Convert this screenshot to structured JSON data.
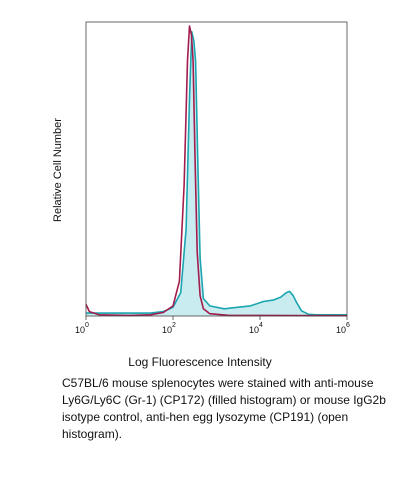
{
  "chart_data": {
    "type": "area",
    "title": "",
    "xlabel": "Log Fluorescence Intensity",
    "ylabel": "Relative Cell Number",
    "xscale": "log",
    "xlim": [
      1,
      1000000
    ],
    "ylim": [
      0,
      1
    ],
    "grid": false,
    "legend": "none",
    "ticks": [
      {
        "base": "10",
        "exp": "0",
        "value": 1
      },
      {
        "base": "10",
        "exp": "2",
        "value": 100
      },
      {
        "base": "10",
        "exp": "4",
        "value": 10000
      },
      {
        "base": "10",
        "exp": "6",
        "value": 1000000
      }
    ],
    "series": [
      {
        "style": "filled",
        "color": "#1aa5b0",
        "fill": "#c8ecef",
        "points": [
          [
            1,
            0.01
          ],
          [
            10,
            0.01
          ],
          [
            30,
            0.01
          ],
          [
            60,
            0.015
          ],
          [
            100,
            0.03
          ],
          [
            150,
            0.08
          ],
          [
            200,
            0.3
          ],
          [
            240,
            0.75
          ],
          [
            270,
            0.98
          ],
          [
            300,
            0.95
          ],
          [
            330,
            0.88
          ],
          [
            370,
            0.55
          ],
          [
            420,
            0.2
          ],
          [
            500,
            0.06
          ],
          [
            700,
            0.035
          ],
          [
            1500,
            0.025
          ],
          [
            3000,
            0.03
          ],
          [
            6000,
            0.035
          ],
          [
            12000,
            0.05
          ],
          [
            20000,
            0.055
          ],
          [
            30000,
            0.065
          ],
          [
            40000,
            0.08
          ],
          [
            48000,
            0.085
          ],
          [
            58000,
            0.07
          ],
          [
            70000,
            0.045
          ],
          [
            90000,
            0.018
          ],
          [
            130000,
            0.006
          ],
          [
            200000,
            0.004
          ],
          [
            1000000,
            0.004
          ]
        ]
      },
      {
        "style": "open",
        "color": "#a31c4e",
        "points": [
          [
            1,
            0.04
          ],
          [
            1.2,
            0.015
          ],
          [
            2,
            0.004
          ],
          [
            10,
            0.002
          ],
          [
            30,
            0.004
          ],
          [
            60,
            0.012
          ],
          [
            100,
            0.035
          ],
          [
            140,
            0.12
          ],
          [
            180,
            0.45
          ],
          [
            215,
            0.88
          ],
          [
            240,
            1.0
          ],
          [
            265,
            0.97
          ],
          [
            290,
            0.88
          ],
          [
            320,
            0.55
          ],
          [
            360,
            0.22
          ],
          [
            420,
            0.07
          ],
          [
            500,
            0.025
          ],
          [
            700,
            0.008
          ],
          [
            2000,
            0.002
          ],
          [
            1000000,
            0.001
          ]
        ]
      }
    ]
  },
  "caption": "C57BL/6 mouse splenocytes were stained with anti-mouse Ly6G/Ly6C (Gr-1) (CP172) (filled histogram) or mouse IgG2b isotype control, anti-hen egg lysozyme (CP191) (open histogram)."
}
